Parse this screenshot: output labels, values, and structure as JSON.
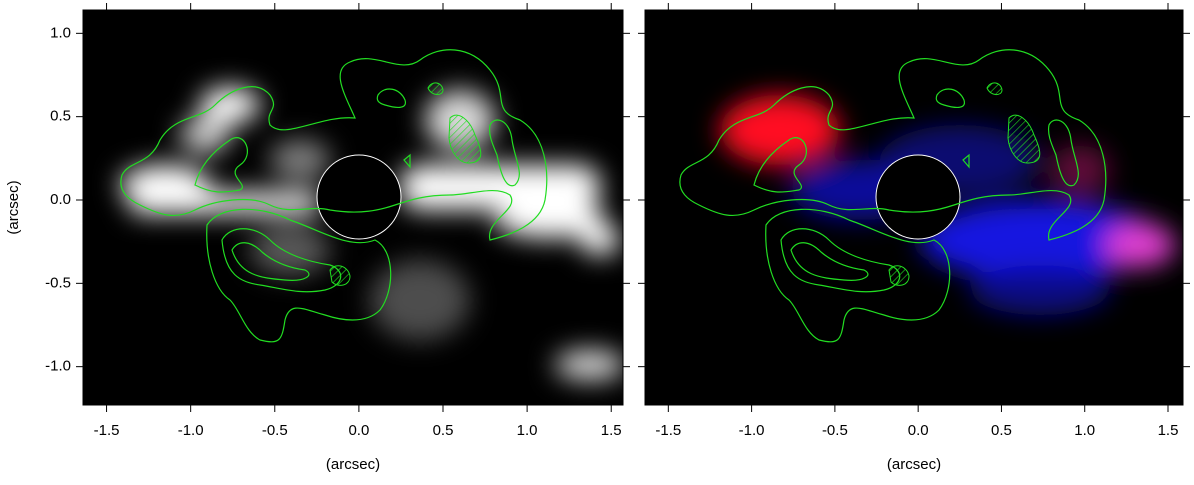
{
  "chart_data": [
    {
      "type": "image",
      "x_label": "(arcsec)",
      "y_label": "(arcsec)",
      "xlim": [
        -1.64,
        1.57
      ],
      "ylim": [
        -1.23,
        1.14
      ],
      "xticks": [
        -1.5,
        {
          "value": -1,
          "label": "-1.0"
        },
        -0.5,
        {
          "value": 0,
          "label": "0.0"
        },
        0.5,
        {
          "value": 1,
          "label": "1.0"
        },
        1.5
      ],
      "yticks": [
        {
          "value": -1,
          "label": "-1.0"
        },
        -0.5,
        {
          "value": 0,
          "label": "0.0"
        },
        0.5,
        {
          "value": 1,
          "label": "1.0"
        }
      ]
    },
    {
      "type": "image",
      "x_label": "(arcsec)",
      "xlim": [
        -1.64,
        1.59
      ],
      "ylim": [
        -1.23,
        1.14
      ],
      "xticks": [
        -1.5,
        {
          "value": -1,
          "label": "-1.0"
        },
        -0.5,
        {
          "value": 0,
          "label": "0.0"
        },
        0.5,
        {
          "value": 1,
          "label": "1.0"
        },
        1.5
      ],
      "yticks": [
        -1,
        -0.5,
        0,
        0.5,
        1
      ]
    }
  ]
}
